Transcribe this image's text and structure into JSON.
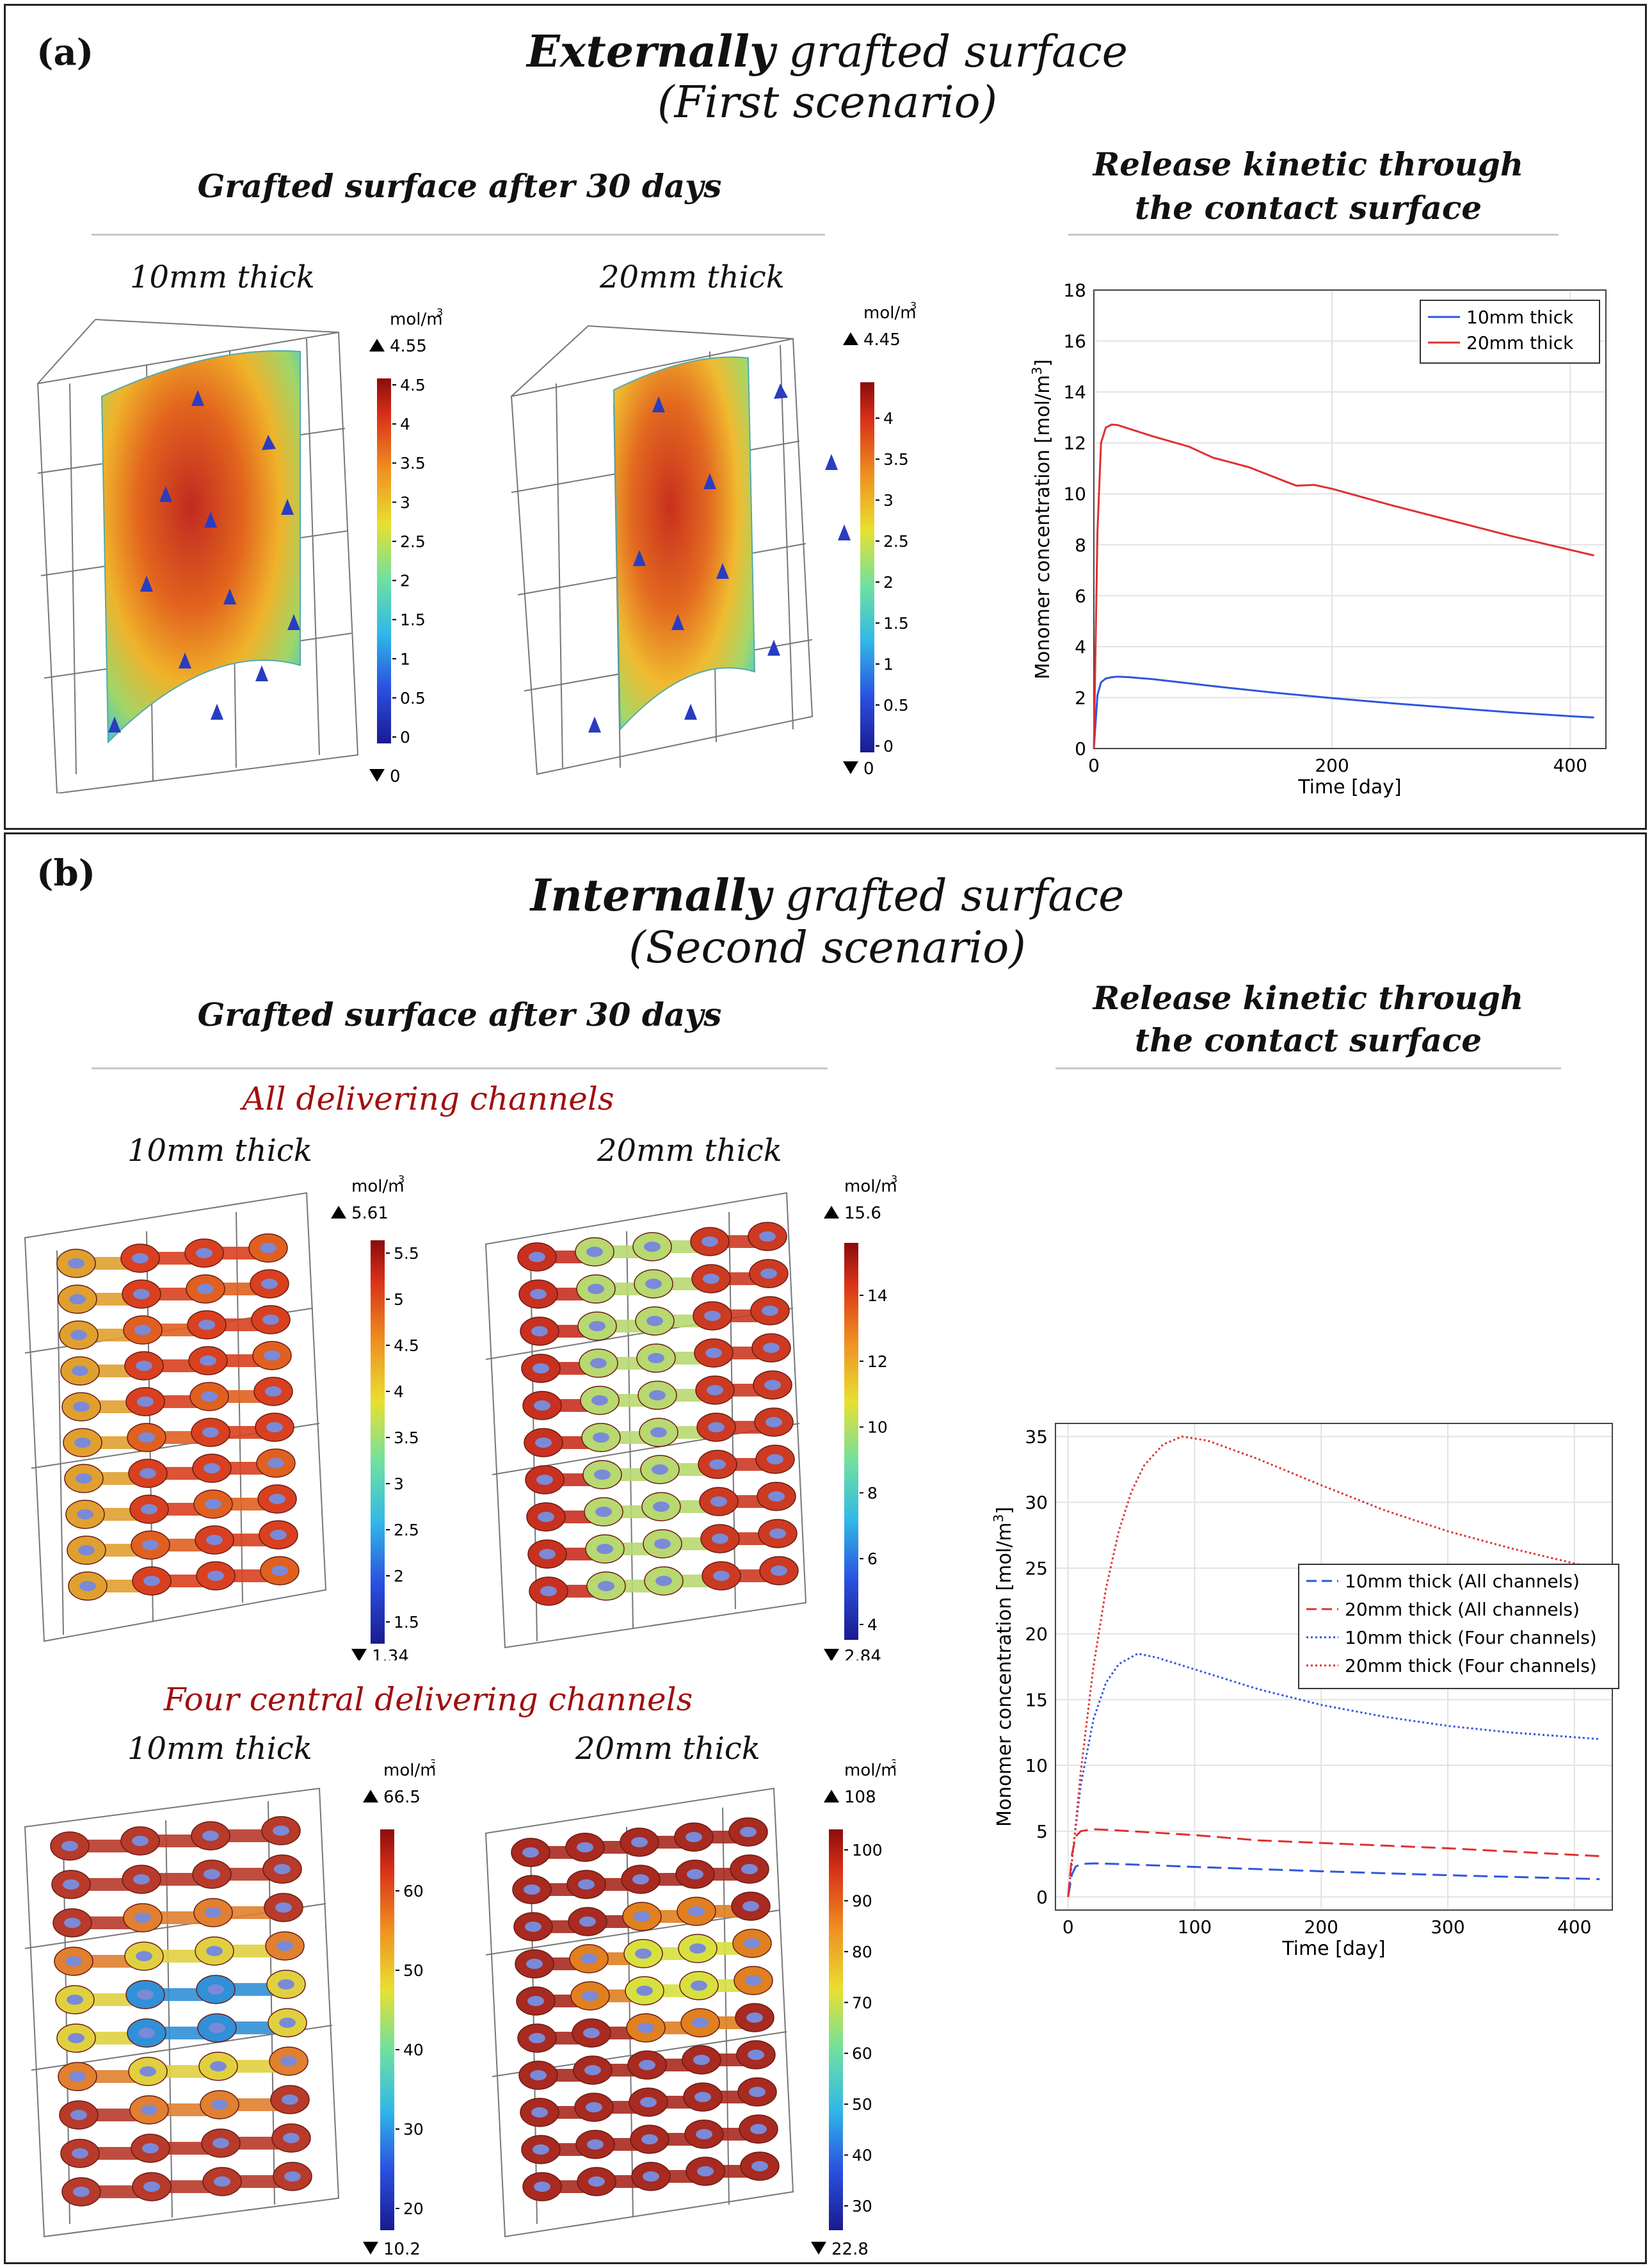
{
  "colors": {
    "blue": "#2f55e0",
    "red": "#e03030",
    "tube": "#b83a2a"
  },
  "panel_a": {
    "tag": "(a)",
    "title_bold": "Externally",
    "title_rest": "grafted surface",
    "subtitle": "(First scenario)",
    "grafted_heading": "Grafted surface after 30 days",
    "release_heading_1": "Release kinetic through",
    "release_heading_2": "the contact surface",
    "thick_10": "10mm thick",
    "thick_20": "20mm thick",
    "cb1": {
      "unit": "mol/m",
      "max": "4.55",
      "min": "0",
      "ticks": [
        "4.5",
        "4",
        "3.5",
        "3",
        "2.5",
        "2",
        "1.5",
        "1",
        "0.5",
        "0"
      ]
    },
    "cb2": {
      "unit": "mol/m",
      "max": "4.45",
      "min": "0",
      "ticks": [
        "4",
        "3.5",
        "3",
        "2.5",
        "2",
        "1.5",
        "1",
        "0.5",
        "0"
      ]
    }
  },
  "panel_b": {
    "tag": "(b)",
    "title_bold": "Internally",
    "title_rest": "grafted surface",
    "subtitle": "(Second scenario)",
    "grafted_heading": "Grafted surface after 30 days",
    "release_heading_1": "Release kinetic through",
    "release_heading_2": "the contact surface",
    "all_channels": "All delivering channels",
    "four_channels": "Four central delivering channels",
    "thick_10": "10mm thick",
    "thick_20": "20mm thick",
    "cb3": {
      "unit": "mol/m",
      "max": "5.61",
      "min": "1.34",
      "ticks": [
        "5.5",
        "5",
        "4.5",
        "4",
        "3.5",
        "3",
        "2.5",
        "2",
        "1.5"
      ]
    },
    "cb4": {
      "unit": "mol/m",
      "max": "15.6",
      "min": "2.84",
      "ticks": [
        "14",
        "12",
        "10",
        "8",
        "6",
        "4"
      ]
    },
    "cb5": {
      "unit": "mol/m",
      "max": "66.5",
      "min": "10.2",
      "ticks": [
        "60",
        "50",
        "40",
        "30",
        "20"
      ]
    },
    "cb6": {
      "unit": "mol/m",
      "max": "108",
      "min": "22.8",
      "ticks": [
        "100",
        "90",
        "80",
        "70",
        "60",
        "50",
        "40",
        "30"
      ]
    }
  },
  "chart_data": [
    {
      "type": "line",
      "xlabel": "Time [day]",
      "ylabel": "Monomer concentration [mol/m",
      "xlim": [
        0,
        430
      ],
      "ylim": [
        0,
        18
      ],
      "xticks": [
        0,
        200,
        400
      ],
      "yticks": [
        0,
        2,
        4,
        6,
        8,
        10,
        12,
        14,
        16,
        18
      ],
      "legend": "top-right",
      "series": [
        {
          "name": "10mm thick",
          "style": "solid",
          "color": "#2f55e0",
          "x": [
            0,
            3,
            6,
            10,
            15,
            20,
            30,
            50,
            100,
            150,
            200,
            250,
            300,
            350,
            400,
            420
          ],
          "y": [
            0,
            2.1,
            2.6,
            2.75,
            2.8,
            2.82,
            2.8,
            2.72,
            2.45,
            2.2,
            1.98,
            1.78,
            1.6,
            1.42,
            1.27,
            1.22
          ]
        },
        {
          "name": "20mm thick",
          "style": "solid",
          "color": "#e03030",
          "x": [
            0,
            3,
            6,
            10,
            15,
            20,
            30,
            50,
            80,
            100,
            130,
            160,
            170,
            185,
            200,
            250,
            300,
            350,
            400,
            420
          ],
          "y": [
            0,
            8.5,
            12.0,
            12.6,
            12.72,
            12.7,
            12.55,
            12.25,
            11.85,
            11.42,
            11.05,
            10.5,
            10.32,
            10.35,
            10.2,
            9.55,
            8.95,
            8.35,
            7.8,
            7.58
          ]
        }
      ]
    },
    {
      "type": "line",
      "xlabel": "Time [day]",
      "ylabel": "Monomer concentration [mol/m",
      "xlim": [
        -10,
        430
      ],
      "ylim": [
        -1,
        36
      ],
      "xticks": [
        0,
        100,
        200,
        300,
        400
      ],
      "yticks": [
        0,
        5,
        10,
        15,
        20,
        25,
        30,
        35
      ],
      "legend": "center-right",
      "series": [
        {
          "name": "10mm thick (All channels)",
          "style": "dashed",
          "color": "#2f55e0",
          "x": [
            0,
            3,
            6,
            10,
            20,
            40,
            100,
            200,
            300,
            420
          ],
          "y": [
            0,
            1.7,
            2.3,
            2.5,
            2.55,
            2.5,
            2.28,
            1.95,
            1.65,
            1.35
          ]
        },
        {
          "name": "20mm thick (All channels)",
          "style": "dashed",
          "color": "#e03030",
          "x": [
            0,
            3,
            6,
            10,
            20,
            40,
            100,
            150,
            200,
            300,
            420
          ],
          "y": [
            0,
            3.2,
            4.6,
            5.0,
            5.15,
            5.05,
            4.7,
            4.3,
            4.1,
            3.7,
            3.1
          ]
        },
        {
          "name": "10mm thick (Four channels)",
          "style": "dotted",
          "color": "#2f55e0",
          "x": [
            0,
            5,
            10,
            20,
            30,
            40,
            55,
            70,
            100,
            150,
            200,
            250,
            300,
            350,
            420
          ],
          "y": [
            0,
            4.5,
            8.5,
            13.5,
            16.3,
            17.7,
            18.5,
            18.2,
            17.3,
            15.8,
            14.6,
            13.7,
            13.0,
            12.5,
            12.0
          ]
        },
        {
          "name": "20mm thick (Four channels)",
          "style": "dotted",
          "color": "#e03030",
          "x": [
            0,
            5,
            10,
            20,
            30,
            40,
            50,
            60,
            75,
            90,
            110,
            150,
            200,
            250,
            300,
            350,
            420
          ],
          "y": [
            0,
            4.5,
            9.5,
            17.5,
            23.5,
            27.8,
            30.8,
            32.8,
            34.4,
            35.0,
            34.7,
            33.3,
            31.3,
            29.4,
            27.8,
            26.5,
            24.9
          ]
        }
      ]
    }
  ]
}
